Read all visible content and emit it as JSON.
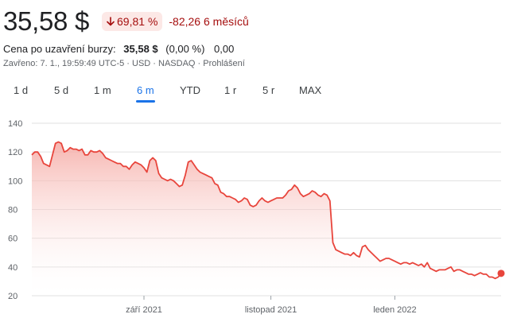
{
  "quote": {
    "price": "35,58 $",
    "change_pct": "69,81 %",
    "change_abs": "-82,26",
    "period_label": "6 měsíců"
  },
  "after_hours": {
    "label": "Cena po uzavření burzy:",
    "price": "35,58 $",
    "pct": "(0,00 %)",
    "abs": "0,00"
  },
  "closed_info": "Zavřeno: 7. 1., 19:59:49 UTC-5 · USD · NASDAQ · Prohlášení",
  "tabs": [
    {
      "label": "1 d",
      "active": false
    },
    {
      "label": "5 d",
      "active": false
    },
    {
      "label": "1 m",
      "active": false
    },
    {
      "label": "6 m",
      "active": true
    },
    {
      "label": "YTD",
      "active": false
    },
    {
      "label": "1 r",
      "active": false
    },
    {
      "label": "5 r",
      "active": false
    },
    {
      "label": "MAX",
      "active": false
    }
  ],
  "colors": {
    "line": "#e8453c",
    "area_top": "#f5a8a2",
    "negative": "#a50e0e",
    "active_tab": "#1a73e8",
    "grid": "#e0e0e0"
  },
  "chart_data": {
    "type": "area",
    "ylim": [
      20,
      140
    ],
    "y_ticks": [
      "20",
      "40",
      "60",
      "80",
      "100",
      "120",
      "140"
    ],
    "x_ticks": [
      {
        "label": "září 2021",
        "index": 38
      },
      {
        "label": "listopad 2021",
        "index": 81
      },
      {
        "label": "leden 2022",
        "index": 123
      }
    ],
    "values": [
      118,
      120,
      120,
      117,
      112,
      111,
      110,
      118,
      126,
      127,
      126,
      120,
      121,
      123,
      122,
      122,
      121,
      122,
      118,
      118,
      121,
      120,
      120,
      121,
      119,
      116,
      115,
      114,
      113,
      112,
      112,
      110,
      110,
      108,
      111,
      113,
      112,
      111,
      109,
      106,
      114,
      116,
      114,
      105,
      102,
      101,
      100,
      101,
      100,
      98,
      96,
      97,
      104,
      113,
      114,
      111,
      108,
      106,
      105,
      104,
      103,
      102,
      98,
      97,
      92,
      91,
      89,
      89,
      88,
      87,
      85,
      86,
      88,
      87,
      83,
      82,
      83,
      86,
      88,
      86,
      85,
      86,
      87,
      88,
      88,
      88,
      90,
      93,
      94,
      97,
      95,
      91,
      89,
      90,
      91,
      93,
      92,
      90,
      89,
      91,
      90,
      86,
      57,
      52,
      51,
      50,
      49,
      49,
      48,
      50,
      48,
      47,
      54,
      55,
      52,
      50,
      48,
      46,
      44,
      45,
      46,
      46,
      45,
      44,
      43,
      42,
      43,
      43,
      42,
      43,
      42,
      41,
      42,
      40,
      43,
      39,
      38,
      37,
      38,
      38,
      38,
      39,
      40,
      37,
      38,
      38,
      37,
      36,
      35,
      35,
      34,
      35,
      36,
      35,
      35,
      33,
      33,
      32,
      33,
      35.58
    ],
    "last_value": 35.58
  }
}
